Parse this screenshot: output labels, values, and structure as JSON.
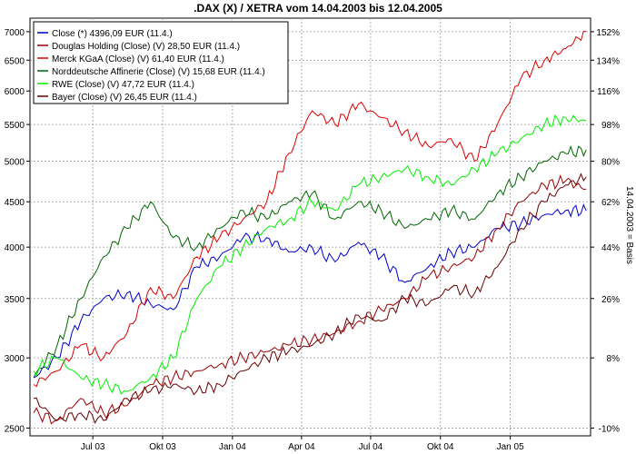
{
  "chart_data": {
    "type": "line",
    "title": ".DAX (X) / XETRA vom 14.04.2003 bis 12.04.2005",
    "right_axis_label": "14.04.2003 = Basis",
    "x_ticks": [
      "Jul 03",
      "Okt 03",
      "Jan 04",
      "Apr 04",
      "Jul 04",
      "Okt 04",
      "Jan 05"
    ],
    "y_left_ticks": [
      "2500",
      "3000",
      "3500",
      "4000",
      "4500",
      "5000",
      "5500",
      "6000",
      "6500",
      "7000"
    ],
    "y_right_ticks": [
      "-10%",
      "8%",
      "26%",
      "44%",
      "62%",
      "80%",
      "98%",
      "116%",
      "134%",
      "152%"
    ],
    "y_left_range": [
      2450,
      7250
    ],
    "y_scale": "log",
    "grid": true,
    "legend_position": "top-left",
    "series": [
      {
        "name": "Close (*) 4396,09 EUR (11.4.)",
        "color": "#0000cc",
        "x": [
          "2003-04-14",
          "2003-05-15",
          "2003-06-15",
          "2003-07-15",
          "2003-08-15",
          "2003-09-15",
          "2003-10-15",
          "2003-11-15",
          "2003-12-15",
          "2004-01-15",
          "2004-02-15",
          "2004-03-15",
          "2004-04-15",
          "2004-05-15",
          "2004-06-15",
          "2004-07-15",
          "2004-08-15",
          "2004-09-15",
          "2004-10-15",
          "2004-11-15",
          "2004-12-15",
          "2005-01-15",
          "2005-02-15",
          "2005-03-15",
          "2005-04-11"
        ],
        "y": [
          2850,
          3000,
          3300,
          3500,
          3550,
          3450,
          3400,
          3800,
          3900,
          4100,
          4100,
          3950,
          4000,
          3850,
          4050,
          3900,
          3650,
          3800,
          3950,
          4000,
          4200,
          4250,
          4350,
          4400,
          4396
        ]
      },
      {
        "name": "Douglas Holding (Close) (V) 28,50 EUR (11.4.)",
        "color": "#990000",
        "x": [
          "2003-04-14",
          "2003-05-15",
          "2003-06-15",
          "2003-07-15",
          "2003-08-15",
          "2003-09-15",
          "2003-10-15",
          "2003-11-15",
          "2003-12-15",
          "2004-01-15",
          "2004-02-15",
          "2004-03-15",
          "2004-04-15",
          "2004-05-15",
          "2004-06-15",
          "2004-07-15",
          "2004-08-15",
          "2004-09-15",
          "2004-10-15",
          "2004-11-15",
          "2004-12-15",
          "2005-01-15",
          "2005-02-15",
          "2005-03-15",
          "2005-04-11"
        ],
        "y": [
          2600,
          2550,
          2700,
          2600,
          2650,
          2800,
          2850,
          2900,
          2950,
          3000,
          3050,
          3100,
          3150,
          3200,
          3300,
          3400,
          3500,
          3700,
          3800,
          3900,
          4200,
          4500,
          4700,
          4750,
          4650
        ]
      },
      {
        "name": "Merck KGaA (Close) (V) 61,40 EUR (11.4.)",
        "color": "#dd0000",
        "x": [
          "2003-04-14",
          "2003-05-15",
          "2003-06-15",
          "2003-07-15",
          "2003-08-15",
          "2003-09-15",
          "2003-10-15",
          "2003-11-15",
          "2003-12-15",
          "2004-01-15",
          "2004-02-15",
          "2004-03-15",
          "2004-04-15",
          "2004-05-15",
          "2004-06-15",
          "2004-07-15",
          "2004-08-15",
          "2004-09-15",
          "2004-10-15",
          "2004-11-15",
          "2004-12-15",
          "2005-01-15",
          "2005-02-15",
          "2005-03-15",
          "2005-04-11"
        ],
        "y": [
          2800,
          2900,
          3100,
          3000,
          3200,
          3600,
          3500,
          3900,
          4100,
          4300,
          4500,
          5100,
          5700,
          5500,
          5800,
          5600,
          5400,
          5200,
          5300,
          5000,
          5500,
          6200,
          6500,
          6700,
          7000
        ]
      },
      {
        "name": "Norddeutsche Affinerie (Close) (V) 15,68 EUR (11.4.)",
        "color": "#006600",
        "x": [
          "2003-04-14",
          "2003-05-15",
          "2003-06-15",
          "2003-07-15",
          "2003-08-15",
          "2003-09-15",
          "2003-10-15",
          "2003-11-15",
          "2003-12-15",
          "2004-01-15",
          "2004-02-15",
          "2004-03-15",
          "2004-04-15",
          "2004-05-15",
          "2004-06-15",
          "2004-07-15",
          "2004-08-15",
          "2004-09-15",
          "2004-10-15",
          "2004-11-15",
          "2004-12-15",
          "2005-01-15",
          "2005-02-15",
          "2005-03-15",
          "2005-04-11"
        ],
        "y": [
          2850,
          3100,
          3500,
          3900,
          4200,
          4500,
          4100,
          4000,
          4200,
          4400,
          4300,
          4500,
          4600,
          4300,
          4500,
          4400,
          4200,
          4300,
          4400,
          4300,
          4600,
          4800,
          5000,
          5100,
          5150
        ]
      },
      {
        "name": "RWE (Close) (V) 47,72 EUR (11.4.)",
        "color": "#00ee00",
        "x": [
          "2003-04-14",
          "2003-05-15",
          "2003-06-15",
          "2003-07-15",
          "2003-08-15",
          "2003-09-15",
          "2003-10-15",
          "2003-11-15",
          "2003-12-15",
          "2004-01-15",
          "2004-02-15",
          "2004-03-15",
          "2004-04-15",
          "2004-05-15",
          "2004-06-15",
          "2004-07-15",
          "2004-08-15",
          "2004-09-15",
          "2004-10-15",
          "2004-11-15",
          "2004-12-15",
          "2005-01-15",
          "2005-02-15",
          "2005-03-15",
          "2005-04-11"
        ],
        "y": [
          2900,
          3000,
          2850,
          2800,
          2750,
          2850,
          3000,
          3500,
          3800,
          4000,
          4200,
          4300,
          4500,
          4400,
          4700,
          4800,
          4900,
          4800,
          4700,
          4900,
          5100,
          5300,
          5500,
          5600,
          5550
        ]
      },
      {
        "name": "Bayer (Close) (V) 26,45 EUR (11.4.)",
        "color": "#660000",
        "x": [
          "2003-04-14",
          "2003-05-15",
          "2003-06-15",
          "2003-07-15",
          "2003-08-15",
          "2003-09-15",
          "2003-10-15",
          "2003-11-15",
          "2003-12-15",
          "2004-01-15",
          "2004-02-15",
          "2004-03-15",
          "2004-04-15",
          "2004-05-15",
          "2004-06-15",
          "2004-07-15",
          "2004-08-15",
          "2004-09-15",
          "2004-10-15",
          "2004-11-15",
          "2004-12-15",
          "2005-01-15",
          "2005-02-15",
          "2005-03-15",
          "2005-04-11"
        ],
        "y": [
          2700,
          2550,
          2600,
          2550,
          2700,
          2750,
          2800,
          2750,
          2800,
          2900,
          3000,
          3050,
          3100,
          3200,
          3350,
          3300,
          3500,
          3450,
          3600,
          3550,
          3800,
          4200,
          4500,
          4700,
          4800
        ]
      }
    ]
  }
}
